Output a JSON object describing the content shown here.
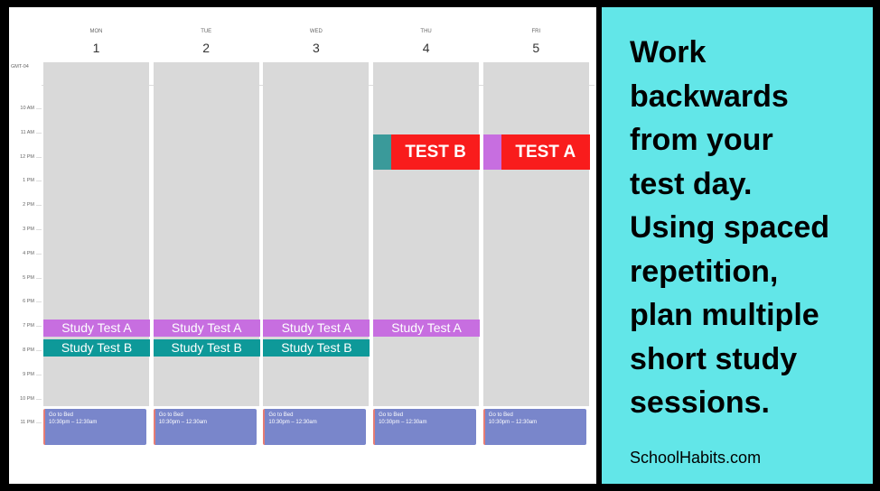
{
  "calendar": {
    "timezone": "GMT-04",
    "days": [
      {
        "weekday": "MON",
        "date": "1",
        "events": [
          {
            "title": "Study Test A",
            "kind": "study-a"
          },
          {
            "title": "Study Test B",
            "kind": "study-b"
          },
          {
            "title": "Go to Bed",
            "time": "10:30pm – 12:30am",
            "kind": "bed"
          }
        ]
      },
      {
        "weekday": "TUE",
        "date": "2",
        "events": [
          {
            "title": "Study Test A",
            "kind": "study-a"
          },
          {
            "title": "Study Test B",
            "kind": "study-b"
          },
          {
            "title": "Go to Bed",
            "time": "10:30pm – 12:30am",
            "kind": "bed"
          }
        ]
      },
      {
        "weekday": "WED",
        "date": "3",
        "events": [
          {
            "title": "Study Test A",
            "kind": "study-a"
          },
          {
            "title": "Study Test B",
            "kind": "study-b"
          },
          {
            "title": "Go to Bed",
            "time": "10:30pm – 12:30am",
            "kind": "bed"
          }
        ]
      },
      {
        "weekday": "THU",
        "date": "4",
        "events": [
          {
            "title": "TEST B",
            "kind": "test-b"
          },
          {
            "title": "Study Test A",
            "kind": "study-a"
          },
          {
            "title": "Go to Bed",
            "time": "10:30pm – 12:30am",
            "kind": "bed"
          }
        ]
      },
      {
        "weekday": "FRI",
        "date": "5",
        "events": [
          {
            "title": "TEST A",
            "kind": "test-a"
          },
          {
            "title": "Go to Bed",
            "time": "10:30pm – 12:30am",
            "kind": "bed"
          }
        ]
      }
    ],
    "hours": [
      "10 AM",
      "11 AM",
      "12 PM",
      "1 PM",
      "2 PM",
      "3 PM",
      "4 PM",
      "5 PM",
      "6 PM",
      "7 PM",
      "8 PM",
      "9 PM",
      "10 PM",
      "11 PM"
    ]
  },
  "panel": {
    "headline_lines": [
      "Work",
      "backwards",
      "from your",
      "test day.",
      "Using spaced",
      "repetition,",
      "plan multiple",
      "short study",
      "sessions."
    ],
    "footer": "SchoolHabits.com"
  }
}
